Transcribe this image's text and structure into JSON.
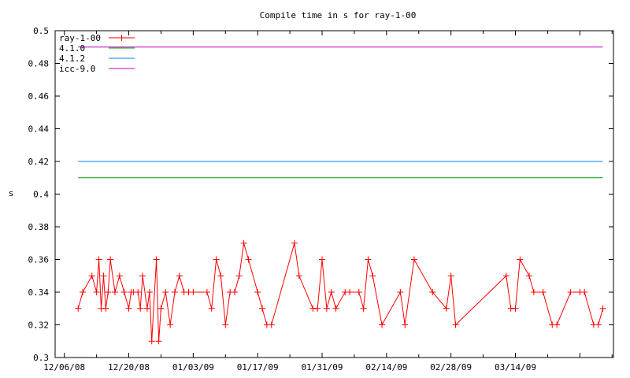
{
  "chart_data": {
    "type": "line",
    "title": "Compile time in s for ray-1-00",
    "xlabel": "",
    "ylabel": "s",
    "xlim": [
      "2008-12-06",
      "2009-04-02"
    ],
    "ylim": [
      0.3,
      0.5
    ],
    "x_ticks": [
      "12/06/08",
      "12/20/08",
      "01/03/09",
      "01/17/09",
      "01/31/09",
      "02/14/09",
      "02/28/09",
      "03/14/09"
    ],
    "y_ticks": [
      "0.3",
      "0.32",
      "0.34",
      "0.36",
      "0.38",
      "0.4",
      "0.42",
      "0.44",
      "0.46",
      "0.48",
      "0.5"
    ],
    "grid": false,
    "legend_position": "top-left",
    "series": [
      {
        "name": "ray-1-00",
        "color": "#ff0000",
        "marker": "plus",
        "points": [
          [
            "2008-12-09",
            0.33
          ],
          [
            "2008-12-10",
            0.34
          ],
          [
            "2008-12-12",
            0.35
          ],
          [
            "2008-12-13",
            0.34
          ],
          [
            "2008-12-13",
            0.36
          ],
          [
            "2008-12-14",
            0.33
          ],
          [
            "2008-12-14",
            0.35
          ],
          [
            "2008-12-15",
            0.33
          ],
          [
            "2008-12-15",
            0.34
          ],
          [
            "2008-12-16",
            0.36
          ],
          [
            "2008-12-17",
            0.34
          ],
          [
            "2008-12-18",
            0.35
          ],
          [
            "2008-12-19",
            0.34
          ],
          [
            "2008-12-20",
            0.33
          ],
          [
            "2008-12-20",
            0.34
          ],
          [
            "2008-12-21",
            0.34
          ],
          [
            "2008-12-22",
            0.34
          ],
          [
            "2008-12-22",
            0.33
          ],
          [
            "2008-12-23",
            0.35
          ],
          [
            "2008-12-24",
            0.33
          ],
          [
            "2008-12-24",
            0.34
          ],
          [
            "2008-12-25",
            0.31
          ],
          [
            "2008-12-26",
            0.36
          ],
          [
            "2008-12-26",
            0.31
          ],
          [
            "2008-12-27",
            0.33
          ],
          [
            "2008-12-28",
            0.34
          ],
          [
            "2008-12-29",
            0.32
          ],
          [
            "2008-12-30",
            0.34
          ],
          [
            "2008-12-31",
            0.35
          ],
          [
            "2009-01-01",
            0.34
          ],
          [
            "2009-01-02",
            0.34
          ],
          [
            "2009-01-03",
            0.34
          ],
          [
            "2009-01-06",
            0.34
          ],
          [
            "2009-01-07",
            0.33
          ],
          [
            "2009-01-08",
            0.36
          ],
          [
            "2009-01-09",
            0.35
          ],
          [
            "2009-01-10",
            0.32
          ],
          [
            "2009-01-11",
            0.34
          ],
          [
            "2009-01-12",
            0.34
          ],
          [
            "2009-01-13",
            0.35
          ],
          [
            "2009-01-14",
            0.37
          ],
          [
            "2009-01-15",
            0.36
          ],
          [
            "2009-01-17",
            0.34
          ],
          [
            "2009-01-18",
            0.33
          ],
          [
            "2009-01-19",
            0.32
          ],
          [
            "2009-01-20",
            0.32
          ],
          [
            "2009-01-25",
            0.37
          ],
          [
            "2009-01-26",
            0.35
          ],
          [
            "2009-01-29",
            0.33
          ],
          [
            "2009-01-30",
            0.33
          ],
          [
            "2009-01-31",
            0.36
          ],
          [
            "2009-02-01",
            0.33
          ],
          [
            "2009-02-02",
            0.34
          ],
          [
            "2009-02-03",
            0.33
          ],
          [
            "2009-02-05",
            0.34
          ],
          [
            "2009-02-06",
            0.34
          ],
          [
            "2009-02-08",
            0.34
          ],
          [
            "2009-02-09",
            0.33
          ],
          [
            "2009-02-10",
            0.36
          ],
          [
            "2009-02-11",
            0.35
          ],
          [
            "2009-02-13",
            0.32
          ],
          [
            "2009-02-17",
            0.34
          ],
          [
            "2009-02-18",
            0.32
          ],
          [
            "2009-02-20",
            0.36
          ],
          [
            "2009-02-24",
            0.34
          ],
          [
            "2009-02-27",
            0.33
          ],
          [
            "2009-02-28",
            0.35
          ],
          [
            "2009-03-01",
            0.32
          ],
          [
            "2009-03-12",
            0.35
          ],
          [
            "2009-03-13",
            0.33
          ],
          [
            "2009-03-14",
            0.33
          ],
          [
            "2009-03-15",
            0.36
          ],
          [
            "2009-03-17",
            0.35
          ],
          [
            "2009-03-18",
            0.34
          ],
          [
            "2009-03-20",
            0.34
          ],
          [
            "2009-03-22",
            0.32
          ],
          [
            "2009-03-23",
            0.32
          ],
          [
            "2009-03-26",
            0.34
          ],
          [
            "2009-03-28",
            0.34
          ],
          [
            "2009-03-29",
            0.34
          ],
          [
            "2009-03-31",
            0.32
          ],
          [
            "2009-04-01",
            0.32
          ],
          [
            "2009-04-02",
            0.33
          ]
        ]
      },
      {
        "name": "4.1.0",
        "color": "#00a000",
        "constant": 0.41,
        "x_range": [
          "2008-12-09",
          "2009-04-02"
        ]
      },
      {
        "name": "4.1.2",
        "color": "#0080ff",
        "constant": 0.42,
        "x_range": [
          "2008-12-09",
          "2009-04-02"
        ]
      },
      {
        "name": "icc-9.0",
        "color": "#c000c0",
        "constant": 0.49,
        "x_range": [
          "2008-12-09",
          "2009-04-02"
        ]
      }
    ]
  }
}
